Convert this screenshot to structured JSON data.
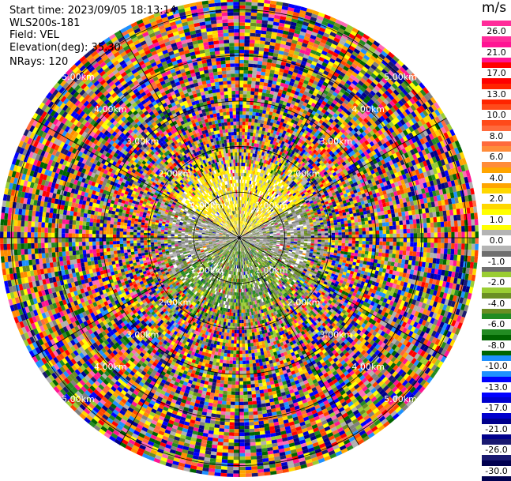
{
  "header": {
    "start_time": "Start time: 2023/09/05 18:13:14",
    "instrument": "WLS200s-181",
    "field": "Field: VEL",
    "elevation": "Elevation(deg): 35.30",
    "nrays": "NRays: 120"
  },
  "colorbar": {
    "unit": "m/s",
    "ticks": [
      "26.0",
      "21.0",
      "17.0",
      "13.0",
      "10.0",
      "8.0",
      "6.0",
      "4.0",
      "2.0",
      "1.0",
      "0.0",
      "-1.0",
      "-2.0",
      "-4.0",
      "-6.0",
      "-8.0",
      "-10.0",
      "-13.0",
      "-17.0",
      "-21.0",
      "-26.0",
      "-30.0"
    ],
    "colors": [
      "#ff2c9a",
      "#ff1493",
      "#ff0000",
      "#ff2400",
      "#ff4a1a",
      "#ff6a3c",
      "#ff8c3a",
      "#ffa500",
      "#ffd700",
      "#ffff00",
      "#b4b4b4",
      "#6e6e6e",
      "#9acd32",
      "#6b8e23",
      "#228b22",
      "#006400",
      "#1e90ff",
      "#0000ff",
      "#0000cd",
      "#00008b",
      "#191970",
      "#000050"
    ]
  },
  "chart_data": {
    "type": "ppi-polar",
    "field": "VEL",
    "units": "m/s",
    "n_rays": 120,
    "elevation_deg": 35.3,
    "range_rings_km": [
      1.0,
      2.0,
      3.0,
      4.0,
      5.0
    ],
    "range_ring_labels": [
      "1.00km",
      "2.00km",
      "3.00km",
      "4.00km",
      "5.00km"
    ],
    "azimuth_spokes_deg": [
      0,
      30,
      60,
      90,
      120,
      150,
      180,
      210,
      240,
      270,
      300,
      330
    ],
    "max_range_km": 5.25,
    "velocity_range": [
      -30.0,
      26.0
    ],
    "north_sector_color": "yellow",
    "south_sector_color": "green",
    "east_west_sector_color": "grey"
  }
}
